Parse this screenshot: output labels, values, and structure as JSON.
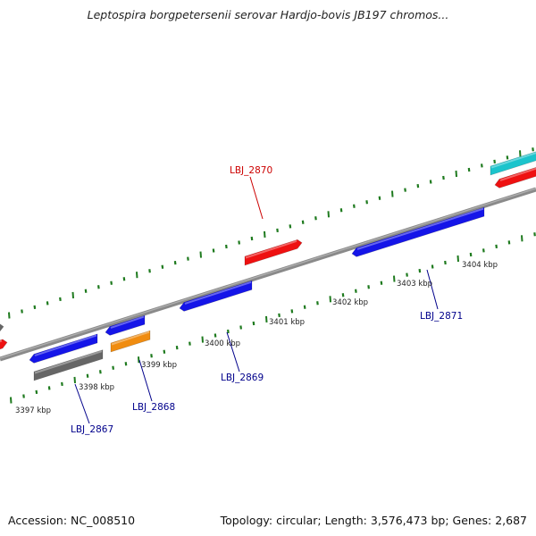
{
  "title": "Leptospira borgpetersenii serovar Hardjo-bovis JB197 chromos...",
  "footer": {
    "accession": "Accession: NC_008510",
    "summary": "Topology: circular; Length: 3,576,473 bp; Genes: 2,687"
  },
  "colors": {
    "blue_gene": "#1515e8",
    "red_gene": "#ee1111",
    "gray_gene": "#666666",
    "orange_gene": "#f08c10",
    "cyan_gene": "#1cc4cc",
    "tick": "#1e7a1e",
    "backbone": "#808080",
    "label_blue": "#00008b",
    "label_red": "#cc0000"
  },
  "kbp_labels": [
    {
      "text": "3397 kbp",
      "kbp": 3397
    },
    {
      "text": "3398 kbp",
      "kbp": 3398
    },
    {
      "text": "3399 kbp",
      "kbp": 3399
    },
    {
      "text": "3400 kbp",
      "kbp": 3400
    },
    {
      "text": "3401 kbp",
      "kbp": 3401
    },
    {
      "text": "3402 kbp",
      "kbp": 3402
    },
    {
      "text": "3403 kbp",
      "kbp": 3403
    },
    {
      "text": "3404 kbp",
      "kbp": 3404
    }
  ],
  "gene_labels": [
    {
      "text": "LBJ_2867",
      "color": "label_blue"
    },
    {
      "text": "LBJ_2868",
      "color": "label_blue"
    },
    {
      "text": "LBJ_2869",
      "color": "label_blue"
    },
    {
      "text": "LBJ_2870",
      "color": "label_red"
    },
    {
      "text": "LBJ_2871",
      "color": "label_blue"
    }
  ]
}
